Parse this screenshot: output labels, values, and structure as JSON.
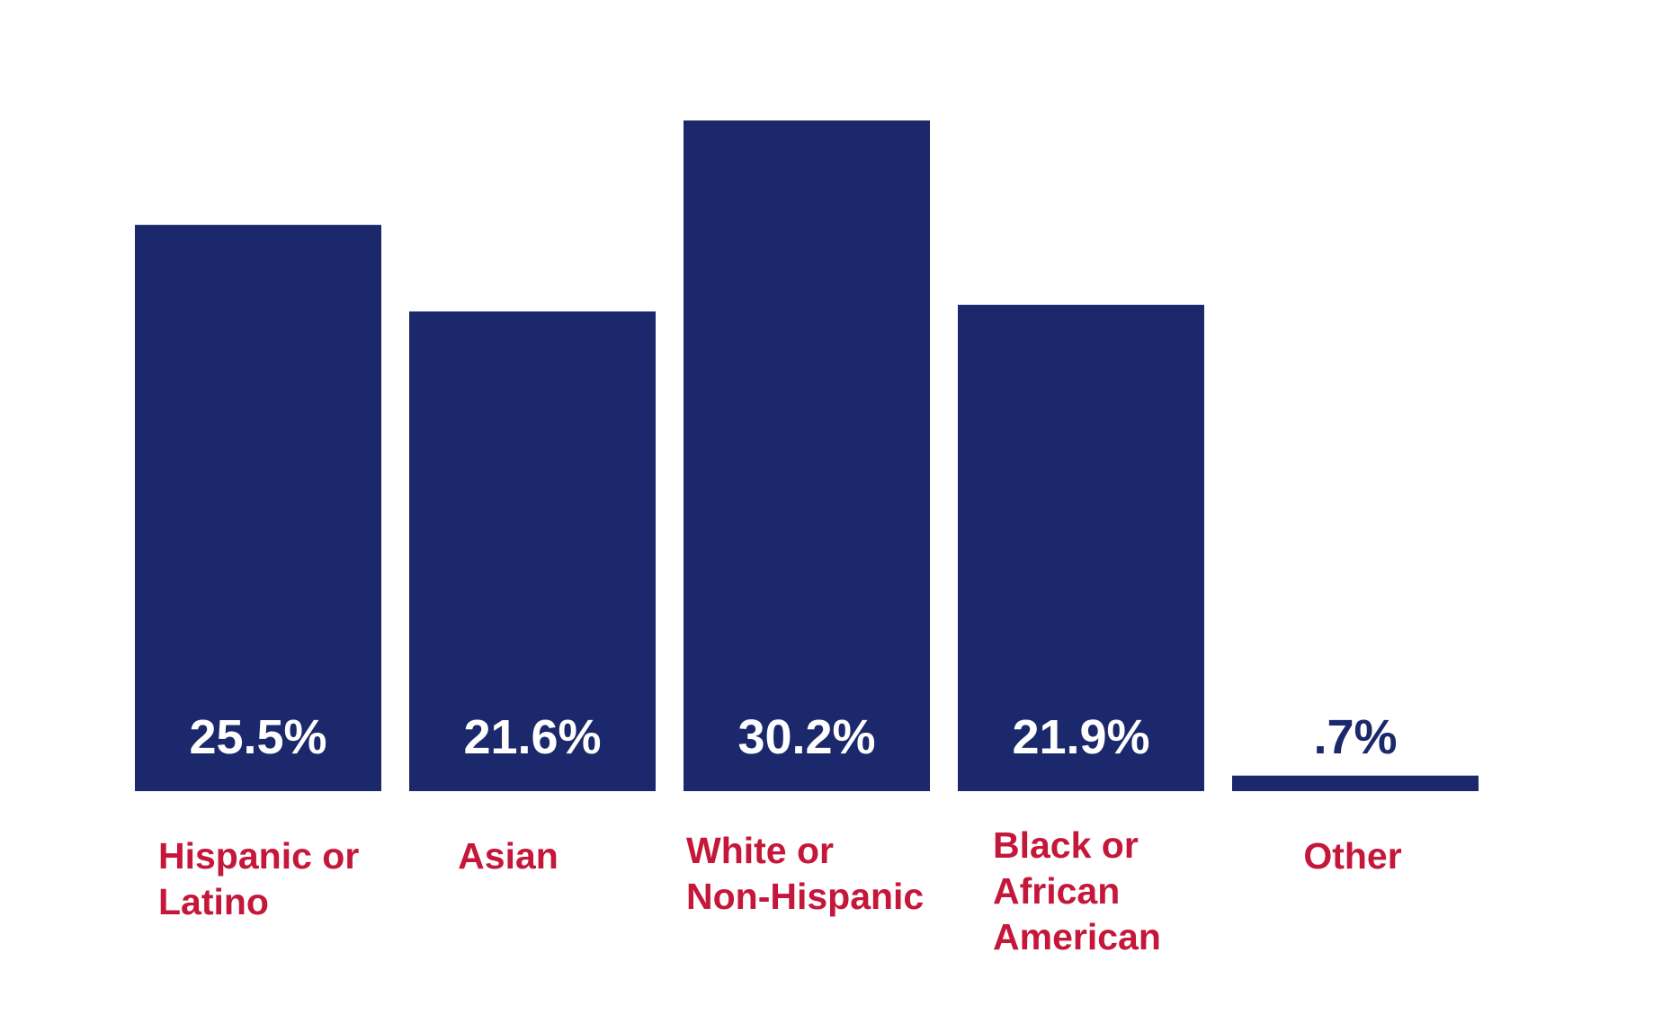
{
  "colors": {
    "bar": "#1b286b",
    "value_label_inside": "#ffffff",
    "value_label_outside": "#1b286b",
    "category_label": "#c4173a",
    "background": "#ffffff"
  },
  "chart_data": {
    "type": "bar",
    "title": "",
    "xlabel": "",
    "ylabel": "",
    "ylim": [
      0,
      30.2
    ],
    "grid": false,
    "legend": "none",
    "categories": [
      [
        "Hispanic or",
        "Latino"
      ],
      [
        "Asian"
      ],
      [
        "White or",
        "Non-Hispanic"
      ],
      [
        "Black or",
        "African",
        "American"
      ],
      [
        "Other"
      ]
    ],
    "values": [
      25.5,
      21.6,
      30.2,
      21.9,
      0.7
    ],
    "value_labels": [
      "25.5%",
      "21.6%",
      "30.2%",
      "21.9%",
      ".7%"
    ]
  }
}
